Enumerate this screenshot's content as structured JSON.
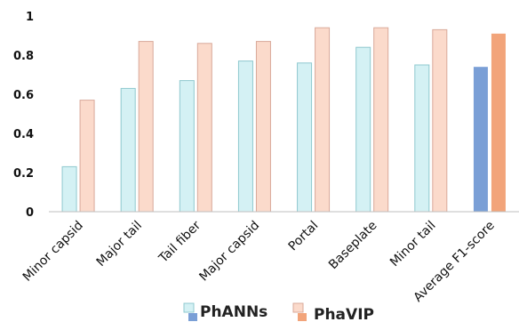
{
  "chart_data": {
    "type": "bar",
    "categories": [
      "Minor capsid",
      "Major tail",
      "Tail fiber",
      "Major capsid",
      "Portal",
      "Baseplate",
      "Minor tail",
      "Average F1-score"
    ],
    "series": [
      {
        "name": "PhANNs",
        "values": [
          0.23,
          0.63,
          0.67,
          0.77,
          0.76,
          0.84,
          0.75,
          0.74
        ]
      },
      {
        "name": "PhaVIP",
        "values": [
          0.57,
          0.87,
          0.86,
          0.87,
          0.94,
          0.94,
          0.93,
          0.91
        ]
      }
    ],
    "ylim": [
      0,
      1
    ],
    "yticks": [
      0,
      0.2,
      0.4,
      0.6,
      0.8,
      1
    ],
    "ytick_labels": [
      "0",
      "0.2",
      "0.4",
      "0.6",
      "0.8",
      "1"
    ],
    "grid": false,
    "legend_position": "bottom",
    "colors": {
      "phanns_fill": "#d4f1f4",
      "phanns_stroke": "#8fc9cf",
      "phavip_fill": "#fbdacb",
      "phavip_stroke": "#d9a99a",
      "phanns_avg_fill": "#7a9fd6",
      "phavip_avg_fill": "#f2a47a",
      "axis": "#bfbfbf"
    }
  }
}
